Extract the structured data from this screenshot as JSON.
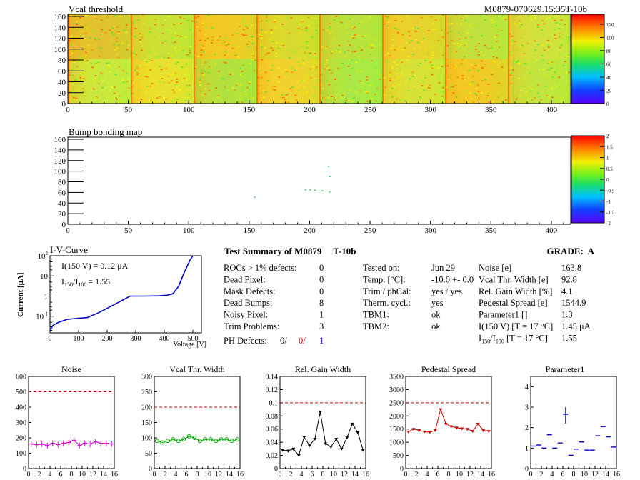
{
  "header": {
    "map_title": "Vcal threshold",
    "module_id": "M0879-070629.15:35T-10b",
    "bump_title": "Bump bonding map"
  },
  "maps": {
    "x_ticks": [
      "0",
      "50",
      "100",
      "150",
      "200",
      "250",
      "300",
      "350",
      "400"
    ],
    "y_ticks": [
      "0",
      "20",
      "40",
      "60",
      "80",
      "100",
      "120",
      "140",
      "160"
    ],
    "vcal_palette_ticks": [
      "0",
      "20",
      "40",
      "60",
      "80",
      "100",
      "120"
    ],
    "bump_palette_ticks": [
      "-2",
      "-1.5",
      "-1",
      "-0.5",
      "0",
      "0.5",
      "1",
      "1.5",
      "2"
    ],
    "bump_points": [
      [
        154,
        52
      ],
      [
        196,
        66
      ],
      [
        200,
        66
      ],
      [
        204,
        65
      ],
      [
        210,
        64
      ],
      [
        216,
        62
      ],
      [
        216,
        91
      ],
      [
        215,
        110
      ]
    ]
  },
  "iv": {
    "title": "I-V-Curve",
    "ylabel": "Current [μA]",
    "xlabel": "Voltage [V]",
    "x_ticks": [
      "0",
      "100",
      "200",
      "300",
      "400",
      "500"
    ],
    "y_ticks": [
      "10^-1",
      "1",
      "10",
      "10^2"
    ],
    "annotation1": "I(150 V) = 0.12 μA",
    "annotation2_prefix": "I",
    "annotation2_sub1": "150",
    "annotation2_mid": "/I",
    "annotation2_sub2": "100",
    "annotation2_val": "=  1.55",
    "color": "#0000cc",
    "points": [
      [
        0,
        0.02
      ],
      [
        10,
        0.035
      ],
      [
        30,
        0.05
      ],
      [
        60,
        0.07
      ],
      [
        100,
        0.08
      ],
      [
        130,
        0.085
      ],
      [
        170,
        0.15
      ],
      [
        220,
        0.35
      ],
      [
        260,
        0.7
      ],
      [
        280,
        1.0
      ],
      [
        330,
        1.0
      ],
      [
        380,
        1.02
      ],
      [
        410,
        1.1
      ],
      [
        430,
        1.3
      ],
      [
        450,
        3
      ],
      [
        470,
        15
      ],
      [
        490,
        60
      ],
      [
        500,
        110
      ]
    ]
  },
  "summary": {
    "title": "Test Summary of M0879     T-10b",
    "grade": "GRADE:  A",
    "left_rows": [
      {
        "label": "ROCs > 1% defects:",
        "value": "0"
      },
      {
        "label": "Dead Pixel:",
        "value": "0"
      },
      {
        "label": "Mask Defects:",
        "value": "0"
      },
      {
        "label": "Dead Bumps:",
        "value": "8"
      },
      {
        "label": "Noisy Pixel:",
        "value": "1"
      },
      {
        "label": "Trim Problems:",
        "value": "3"
      }
    ],
    "ph_label": "PH Defects:",
    "ph_values": [
      "0/",
      "0/",
      "1"
    ],
    "mid_rows": [
      {
        "label": "Tested on:",
        "value": "Jun 29"
      },
      {
        "label": "Temp. [°C]:",
        "value": "-10.0 +- 0.0"
      },
      {
        "label": "Trim / phCal:",
        "value": "yes / yes"
      },
      {
        "label": "Therm. cycl.:",
        "value": "yes"
      },
      {
        "label": "TBM1:",
        "value": "ok"
      },
      {
        "label": "TBM2:",
        "value": "ok"
      }
    ],
    "right_rows": [
      {
        "label": "Noise [e]",
        "value": "163.8"
      },
      {
        "label": "Vcal Thr. Width [e]",
        "value": "92.8"
      },
      {
        "label": "Rel. Gain Width [%]",
        "value": "4.1"
      },
      {
        "label": "Pedestal Spread [e]",
        "value": "1544.9"
      },
      {
        "label": "Parameter1 []",
        "value": "1.3"
      },
      {
        "label": "I(150 V) [T = 17 °C]",
        "value": "1.45 μA"
      },
      {
        "label": "I150/I100  [T = 17 °C]",
        "value": "1.55"
      }
    ]
  },
  "chart_data": [
    {
      "type": "line",
      "title": "Noise",
      "x": [
        0,
        1,
        2,
        3,
        4,
        5,
        6,
        7,
        8,
        9,
        10,
        11,
        12,
        13,
        14,
        15
      ],
      "values": [
        160,
        155,
        160,
        150,
        165,
        155,
        165,
        170,
        185,
        150,
        165,
        160,
        175,
        165,
        165,
        160
      ],
      "ylim": [
        0,
        600
      ],
      "y_ticks": [
        "0",
        "100",
        "200",
        "300",
        "400",
        "500",
        "600"
      ],
      "threshold": 500,
      "color": "#cc00cc",
      "marker": "cross"
    },
    {
      "type": "line",
      "title": "Vcal Thr. Width",
      "x": [
        0,
        1,
        2,
        3,
        4,
        5,
        6,
        7,
        8,
        9,
        10,
        11,
        12,
        13,
        14,
        15
      ],
      "values": [
        90,
        85,
        90,
        95,
        90,
        95,
        105,
        100,
        90,
        95,
        95,
        90,
        95,
        95,
        90,
        95
      ],
      "ylim": [
        0,
        300
      ],
      "y_ticks": [
        "0",
        "50",
        "100",
        "150",
        "200",
        "250",
        "300"
      ],
      "threshold": 200,
      "color": "#00aa00",
      "marker": "circle"
    },
    {
      "type": "line",
      "title": "Rel. Gain Width",
      "x": [
        0,
        1,
        2,
        3,
        4,
        5,
        6,
        7,
        8,
        9,
        10,
        11,
        12,
        13,
        14,
        15
      ],
      "values": [
        0.028,
        0.027,
        0.03,
        0.02,
        0.048,
        0.035,
        0.045,
        0.086,
        0.038,
        0.033,
        0.045,
        0.03,
        0.047,
        0.068,
        0.055,
        0.028
      ],
      "ylim": [
        0,
        0.14
      ],
      "y_ticks": [
        "0",
        "0.02",
        "0.04",
        "0.06",
        "0.08",
        "0.1",
        "0.12",
        "0.14"
      ],
      "threshold": 0.1,
      "color": "#000000",
      "marker": "triangle"
    },
    {
      "type": "line",
      "title": "Pedestal Spread",
      "x": [
        0,
        1,
        2,
        3,
        4,
        5,
        6,
        7,
        8,
        9,
        10,
        11,
        12,
        13,
        14,
        15
      ],
      "values": [
        1400,
        1500,
        1450,
        1400,
        1380,
        1450,
        2250,
        1700,
        1600,
        1550,
        1520,
        1500,
        1420,
        1700,
        1450,
        1420
      ],
      "ylim": [
        0,
        3500
      ],
      "y_ticks": [
        "0",
        "500",
        "1000",
        "1500",
        "2000",
        "2500",
        "3000",
        "3500"
      ],
      "threshold": 2500,
      "color": "#cc0000",
      "marker": "triangle"
    },
    {
      "type": "scatter",
      "title": "Parameter1",
      "x": [
        0,
        1,
        2,
        3,
        4,
        5,
        6,
        7,
        8,
        9,
        10,
        11,
        12,
        13,
        14,
        15
      ],
      "values": [
        1.1,
        1.15,
        1.0,
        1.65,
        1.0,
        1.25,
        2.65,
        0.65,
        0.95,
        1.3,
        0.9,
        0.9,
        1.6,
        2.05,
        1.55,
        1.05
      ],
      "ylim": [
        0,
        4.5
      ],
      "y_ticks": [
        "0",
        "1",
        "2",
        "3",
        "4"
      ],
      "color": "#0000cc",
      "marker": "hbar"
    }
  ],
  "small_x_ticks": [
    "0",
    "2",
    "4",
    "6",
    "8",
    "10",
    "12",
    "14",
    "16"
  ]
}
